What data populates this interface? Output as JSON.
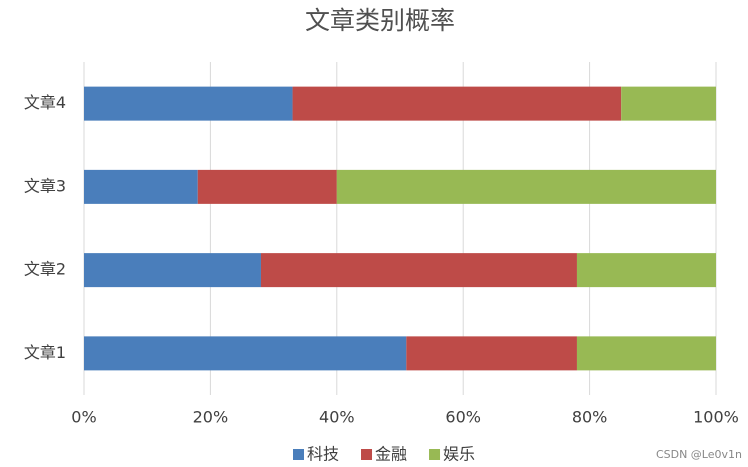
{
  "chart_data": {
    "type": "stacked-barh",
    "title": "文章类别概率",
    "categories": [
      "文章1",
      "文章2",
      "文章3",
      "文章4"
    ],
    "series": [
      {
        "name": "科技",
        "color": "#4a7ebb",
        "values": [
          51,
          28,
          18,
          33
        ]
      },
      {
        "name": "金融",
        "color": "#be4b48",
        "values": [
          27,
          50,
          22,
          52
        ]
      },
      {
        "name": "娱乐",
        "color": "#98b954",
        "values": [
          22,
          22,
          60,
          15
        ]
      }
    ],
    "xlim": [
      0,
      100
    ],
    "xticks": [
      {
        "value": 0,
        "label": "0%"
      },
      {
        "value": 20,
        "label": "20%"
      },
      {
        "value": 40,
        "label": "40%"
      },
      {
        "value": 60,
        "label": "60%"
      },
      {
        "value": 80,
        "label": "80%"
      },
      {
        "value": 100,
        "label": "100%"
      }
    ],
    "grid": true,
    "legend": "bottom",
    "watermark": "CSDN @Le0v1n"
  }
}
